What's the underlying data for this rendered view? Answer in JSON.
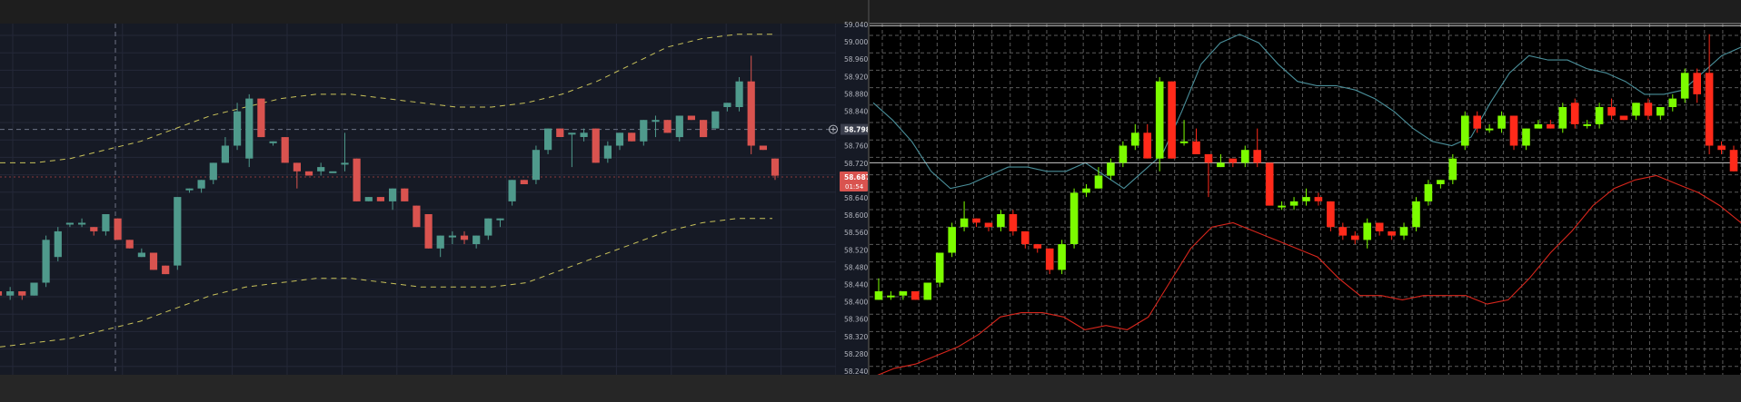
{
  "left_chart": {
    "type": "candlestick",
    "axis_ticks": [
      "59.040",
      "59.000",
      "58.960",
      "58.920",
      "58.880",
      "58.840",
      "58.798",
      "58.760",
      "58.720",
      "58.687",
      "58.640",
      "58.600",
      "58.560",
      "58.520",
      "58.480",
      "58.440",
      "58.400",
      "58.360",
      "58.320",
      "58.280",
      "58.240"
    ],
    "crosshair_price": "58.798",
    "last_price": "58.687",
    "countdown": "01:54",
    "colors": {
      "bg": "#161a25",
      "up": "#4f9a8c",
      "down": "#d9534f",
      "band": "#c9c25a",
      "grid": "#242838",
      "axis_text": "#b2b5be"
    }
  },
  "right_chart": {
    "type": "candlestick",
    "axis_ticks": [
      "59.040",
      "59.000",
      "58.960",
      "58.920",
      "58.880",
      "58.840",
      "58.798",
      "58.760",
      "58.720",
      "58.680",
      "58.640",
      "58.600",
      "58.560",
      "58.520",
      "58.480",
      "58.440",
      "58.400",
      "58.360",
      "58.320",
      "58.280",
      "58.240"
    ],
    "colors": {
      "bg": "#000000",
      "up": "#7cfc00",
      "down": "#ff2a1a",
      "grid": "#5a5a5a",
      "upper_line": "#4a8f9a",
      "lower_line": "#d8261c"
    }
  },
  "chart_data": [
    {
      "type": "candlestick",
      "ylim": [
        58.225,
        59.045
      ],
      "grid": true,
      "candles": [
        {
          "o": 58.42,
          "h": 58.44,
          "l": 58.4,
          "c": 58.41
        },
        {
          "o": 58.41,
          "h": 58.43,
          "l": 58.4,
          "c": 58.42
        },
        {
          "o": 58.42,
          "h": 58.42,
          "l": 58.4,
          "c": 58.41
        },
        {
          "o": 58.41,
          "h": 58.44,
          "l": 58.41,
          "c": 58.44
        },
        {
          "o": 58.44,
          "h": 58.55,
          "l": 58.43,
          "c": 58.54
        },
        {
          "o": 58.5,
          "h": 58.57,
          "l": 58.49,
          "c": 58.56
        },
        {
          "o": 58.58,
          "h": 58.58,
          "l": 58.57,
          "c": 58.58
        },
        {
          "o": 58.58,
          "h": 58.59,
          "l": 58.57,
          "c": 58.58
        },
        {
          "o": 58.57,
          "h": 58.57,
          "l": 58.55,
          "c": 58.56
        },
        {
          "o": 58.56,
          "h": 58.6,
          "l": 58.55,
          "c": 58.6
        },
        {
          "o": 58.59,
          "h": 58.59,
          "l": 58.54,
          "c": 58.54
        },
        {
          "o": 58.54,
          "h": 58.54,
          "l": 58.52,
          "c": 58.52
        },
        {
          "o": 58.5,
          "h": 58.52,
          "l": 58.5,
          "c": 58.51
        },
        {
          "o": 58.51,
          "h": 58.51,
          "l": 58.47,
          "c": 58.47
        },
        {
          "o": 58.48,
          "h": 58.48,
          "l": 58.46,
          "c": 58.46
        },
        {
          "o": 58.48,
          "h": 58.64,
          "l": 58.47,
          "c": 58.64
        },
        {
          "o": 58.66,
          "h": 58.66,
          "l": 58.65,
          "c": 58.66
        },
        {
          "o": 58.66,
          "h": 58.68,
          "l": 58.65,
          "c": 58.68
        },
        {
          "o": 58.68,
          "h": 58.72,
          "l": 58.67,
          "c": 58.72
        },
        {
          "o": 58.72,
          "h": 58.78,
          "l": 58.72,
          "c": 58.76
        },
        {
          "o": 58.76,
          "h": 58.86,
          "l": 58.75,
          "c": 58.84
        },
        {
          "o": 58.73,
          "h": 58.88,
          "l": 58.71,
          "c": 58.87
        },
        {
          "o": 58.87,
          "h": 58.87,
          "l": 58.78,
          "c": 58.78
        },
        {
          "o": 58.77,
          "h": 58.77,
          "l": 58.76,
          "c": 58.77
        },
        {
          "o": 58.78,
          "h": 58.78,
          "l": 58.72,
          "c": 58.72
        },
        {
          "o": 58.72,
          "h": 58.72,
          "l": 58.66,
          "c": 58.7
        },
        {
          "o": 58.7,
          "h": 58.7,
          "l": 58.69,
          "c": 58.69
        },
        {
          "o": 58.7,
          "h": 58.72,
          "l": 58.69,
          "c": 58.71
        },
        {
          "o": 58.7,
          "h": 58.7,
          "l": 58.7,
          "c": 58.7
        },
        {
          "o": 58.72,
          "h": 58.79,
          "l": 58.7,
          "c": 58.72
        },
        {
          "o": 58.73,
          "h": 58.73,
          "l": 58.63,
          "c": 58.63
        },
        {
          "o": 58.63,
          "h": 58.64,
          "l": 58.63,
          "c": 58.64
        },
        {
          "o": 58.64,
          "h": 58.64,
          "l": 58.63,
          "c": 58.63
        },
        {
          "o": 58.63,
          "h": 58.66,
          "l": 58.61,
          "c": 58.66
        },
        {
          "o": 58.66,
          "h": 58.66,
          "l": 58.63,
          "c": 58.63
        },
        {
          "o": 58.62,
          "h": 58.62,
          "l": 58.57,
          "c": 58.57
        },
        {
          "o": 58.6,
          "h": 58.6,
          "l": 58.52,
          "c": 58.52
        },
        {
          "o": 58.52,
          "h": 58.55,
          "l": 58.5,
          "c": 58.55
        },
        {
          "o": 58.55,
          "h": 58.56,
          "l": 58.53,
          "c": 58.55
        },
        {
          "o": 58.55,
          "h": 58.56,
          "l": 58.53,
          "c": 58.54
        },
        {
          "o": 58.53,
          "h": 58.55,
          "l": 58.52,
          "c": 58.55
        },
        {
          "o": 58.55,
          "h": 58.59,
          "l": 58.54,
          "c": 58.59
        },
        {
          "o": 58.59,
          "h": 58.59,
          "l": 58.57,
          "c": 58.59
        },
        {
          "o": 58.63,
          "h": 58.68,
          "l": 58.62,
          "c": 58.68
        },
        {
          "o": 58.68,
          "h": 58.68,
          "l": 58.67,
          "c": 58.67
        },
        {
          "o": 58.68,
          "h": 58.76,
          "l": 58.67,
          "c": 58.75
        },
        {
          "o": 58.75,
          "h": 58.8,
          "l": 58.74,
          "c": 58.8
        },
        {
          "o": 58.8,
          "h": 58.8,
          "l": 58.78,
          "c": 58.78
        },
        {
          "o": 58.79,
          "h": 58.79,
          "l": 58.71,
          "c": 58.79
        },
        {
          "o": 58.78,
          "h": 58.8,
          "l": 58.77,
          "c": 58.79
        },
        {
          "o": 58.8,
          "h": 58.8,
          "l": 58.72,
          "c": 58.72
        },
        {
          "o": 58.73,
          "h": 58.77,
          "l": 58.72,
          "c": 58.76
        },
        {
          "o": 58.76,
          "h": 58.79,
          "l": 58.75,
          "c": 58.79
        },
        {
          "o": 58.79,
          "h": 58.79,
          "l": 58.77,
          "c": 58.77
        },
        {
          "o": 58.77,
          "h": 58.82,
          "l": 58.76,
          "c": 58.82
        },
        {
          "o": 58.82,
          "h": 58.83,
          "l": 58.78,
          "c": 58.82
        },
        {
          "o": 58.82,
          "h": 58.82,
          "l": 58.79,
          "c": 58.79
        },
        {
          "o": 58.78,
          "h": 58.83,
          "l": 58.77,
          "c": 58.83
        },
        {
          "o": 58.83,
          "h": 58.83,
          "l": 58.82,
          "c": 58.82
        },
        {
          "o": 58.82,
          "h": 58.82,
          "l": 58.78,
          "c": 58.78
        },
        {
          "o": 58.8,
          "h": 58.84,
          "l": 58.8,
          "c": 58.84
        },
        {
          "o": 58.85,
          "h": 58.86,
          "l": 58.84,
          "c": 58.86
        },
        {
          "o": 58.85,
          "h": 58.92,
          "l": 58.84,
          "c": 58.91
        },
        {
          "o": 58.91,
          "h": 58.97,
          "l": 58.74,
          "c": 58.76
        },
        {
          "o": 58.76,
          "h": 58.76,
          "l": 58.75,
          "c": 58.75
        },
        {
          "o": 58.73,
          "h": 58.73,
          "l": 58.68,
          "c": 58.69
        }
      ],
      "series": [
        {
          "values": [
            58.72,
            58.72,
            58.73,
            58.75,
            58.77,
            58.8,
            58.83,
            58.85,
            58.87,
            58.88,
            58.88,
            58.87,
            58.86,
            58.85,
            58.85,
            58.86,
            58.88,
            58.91,
            58.95,
            58.99,
            59.01,
            59.02,
            59.02
          ]
        },
        {
          "values": [
            58.29,
            58.3,
            58.31,
            58.33,
            58.35,
            58.38,
            58.41,
            58.43,
            58.44,
            58.45,
            58.45,
            58.44,
            58.43,
            58.43,
            58.43,
            58.44,
            58.47,
            58.5,
            58.53,
            58.56,
            58.58,
            58.59,
            58.59
          ]
        }
      ],
      "crosshair_price": 58.798,
      "last_price": 58.687
    },
    {
      "type": "candlestick",
      "ylim": [
        58.225,
        59.045
      ],
      "grid": true,
      "candles": [
        {
          "o": 58.4,
          "h": 58.45,
          "l": 58.4,
          "c": 58.42
        },
        {
          "o": 58.41,
          "h": 58.42,
          "l": 58.4,
          "c": 58.41
        },
        {
          "o": 58.41,
          "h": 58.42,
          "l": 58.4,
          "c": 58.42
        },
        {
          "o": 58.42,
          "h": 58.42,
          "l": 58.4,
          "c": 58.4
        },
        {
          "o": 58.4,
          "h": 58.44,
          "l": 58.4,
          "c": 58.44
        },
        {
          "o": 58.44,
          "h": 58.51,
          "l": 58.43,
          "c": 58.51
        },
        {
          "o": 58.51,
          "h": 58.58,
          "l": 58.5,
          "c": 58.57
        },
        {
          "o": 58.57,
          "h": 58.63,
          "l": 58.56,
          "c": 58.59
        },
        {
          "o": 58.59,
          "h": 58.59,
          "l": 58.57,
          "c": 58.58
        },
        {
          "o": 58.58,
          "h": 58.58,
          "l": 58.56,
          "c": 58.57
        },
        {
          "o": 58.57,
          "h": 58.61,
          "l": 58.56,
          "c": 58.6
        },
        {
          "o": 58.6,
          "h": 58.61,
          "l": 58.55,
          "c": 58.56
        },
        {
          "o": 58.56,
          "h": 58.56,
          "l": 58.52,
          "c": 58.53
        },
        {
          "o": 58.53,
          "h": 58.53,
          "l": 58.51,
          "c": 58.52
        },
        {
          "o": 58.52,
          "h": 58.52,
          "l": 58.46,
          "c": 58.47
        },
        {
          "o": 58.47,
          "h": 58.54,
          "l": 58.46,
          "c": 58.53
        },
        {
          "o": 58.53,
          "h": 58.66,
          "l": 58.52,
          "c": 58.65
        },
        {
          "o": 58.65,
          "h": 58.67,
          "l": 58.64,
          "c": 58.66
        },
        {
          "o": 58.66,
          "h": 58.71,
          "l": 58.66,
          "c": 58.69
        },
        {
          "o": 58.69,
          "h": 58.73,
          "l": 58.68,
          "c": 58.72
        },
        {
          "o": 58.72,
          "h": 58.77,
          "l": 58.71,
          "c": 58.76
        },
        {
          "o": 58.76,
          "h": 58.81,
          "l": 58.75,
          "c": 58.79
        },
        {
          "o": 58.79,
          "h": 58.81,
          "l": 58.73,
          "c": 58.73
        },
        {
          "o": 58.73,
          "h": 58.92,
          "l": 58.7,
          "c": 58.91
        },
        {
          "o": 58.91,
          "h": 58.91,
          "l": 58.73,
          "c": 58.73
        },
        {
          "o": 58.77,
          "h": 58.82,
          "l": 58.76,
          "c": 58.77
        },
        {
          "o": 58.77,
          "h": 58.8,
          "l": 58.74,
          "c": 58.74
        },
        {
          "o": 58.74,
          "h": 58.74,
          "l": 58.64,
          "c": 58.72
        },
        {
          "o": 58.71,
          "h": 58.74,
          "l": 58.71,
          "c": 58.72
        },
        {
          "o": 58.73,
          "h": 58.73,
          "l": 58.71,
          "c": 58.72
        },
        {
          "o": 58.72,
          "h": 58.76,
          "l": 58.71,
          "c": 58.75
        },
        {
          "o": 58.75,
          "h": 58.8,
          "l": 58.71,
          "c": 58.72
        },
        {
          "o": 58.72,
          "h": 58.72,
          "l": 58.62,
          "c": 58.62
        },
        {
          "o": 58.62,
          "h": 58.63,
          "l": 58.61,
          "c": 58.62
        },
        {
          "o": 58.62,
          "h": 58.64,
          "l": 58.61,
          "c": 58.63
        },
        {
          "o": 58.63,
          "h": 58.66,
          "l": 58.62,
          "c": 58.64
        },
        {
          "o": 58.64,
          "h": 58.65,
          "l": 58.62,
          "c": 58.63
        },
        {
          "o": 58.63,
          "h": 58.63,
          "l": 58.56,
          "c": 58.57
        },
        {
          "o": 58.57,
          "h": 58.58,
          "l": 58.54,
          "c": 58.55
        },
        {
          "o": 58.55,
          "h": 58.56,
          "l": 58.53,
          "c": 58.54
        },
        {
          "o": 58.54,
          "h": 58.59,
          "l": 58.52,
          "c": 58.58
        },
        {
          "o": 58.58,
          "h": 58.58,
          "l": 58.55,
          "c": 58.56
        },
        {
          "o": 58.56,
          "h": 58.56,
          "l": 58.54,
          "c": 58.55
        },
        {
          "o": 58.55,
          "h": 58.58,
          "l": 58.54,
          "c": 58.57
        },
        {
          "o": 58.57,
          "h": 58.64,
          "l": 58.56,
          "c": 58.63
        },
        {
          "o": 58.63,
          "h": 58.68,
          "l": 58.62,
          "c": 58.67
        },
        {
          "o": 58.67,
          "h": 58.68,
          "l": 58.66,
          "c": 58.68
        },
        {
          "o": 58.68,
          "h": 58.74,
          "l": 58.67,
          "c": 58.73
        },
        {
          "o": 58.76,
          "h": 58.84,
          "l": 58.75,
          "c": 58.83
        },
        {
          "o": 58.83,
          "h": 58.84,
          "l": 58.79,
          "c": 58.8
        },
        {
          "o": 58.8,
          "h": 58.81,
          "l": 58.79,
          "c": 58.8
        },
        {
          "o": 58.8,
          "h": 58.84,
          "l": 58.79,
          "c": 58.83
        },
        {
          "o": 58.83,
          "h": 58.83,
          "l": 58.75,
          "c": 58.76
        },
        {
          "o": 58.76,
          "h": 58.8,
          "l": 58.75,
          "c": 58.8
        },
        {
          "o": 58.8,
          "h": 58.82,
          "l": 58.8,
          "c": 58.81
        },
        {
          "o": 58.81,
          "h": 58.82,
          "l": 58.8,
          "c": 58.8
        },
        {
          "o": 58.8,
          "h": 58.86,
          "l": 58.79,
          "c": 58.85
        },
        {
          "o": 58.86,
          "h": 58.87,
          "l": 58.8,
          "c": 58.81
        },
        {
          "o": 58.81,
          "h": 58.82,
          "l": 58.8,
          "c": 58.81
        },
        {
          "o": 58.81,
          "h": 58.86,
          "l": 58.8,
          "c": 58.85
        },
        {
          "o": 58.85,
          "h": 58.87,
          "l": 58.82,
          "c": 58.83
        },
        {
          "o": 58.83,
          "h": 58.83,
          "l": 58.82,
          "c": 58.82
        },
        {
          "o": 58.83,
          "h": 58.86,
          "l": 58.82,
          "c": 58.86
        },
        {
          "o": 58.86,
          "h": 58.87,
          "l": 58.82,
          "c": 58.83
        },
        {
          "o": 58.83,
          "h": 58.85,
          "l": 58.82,
          "c": 58.85
        },
        {
          "o": 58.85,
          "h": 58.88,
          "l": 58.84,
          "c": 58.87
        },
        {
          "o": 58.87,
          "h": 58.94,
          "l": 58.86,
          "c": 58.93
        },
        {
          "o": 58.93,
          "h": 58.94,
          "l": 58.86,
          "c": 58.88
        },
        {
          "o": 58.93,
          "h": 59.02,
          "l": 58.74,
          "c": 58.76
        },
        {
          "o": 58.76,
          "h": 58.77,
          "l": 58.74,
          "c": 58.75
        },
        {
          "o": 58.75,
          "h": 58.76,
          "l": 58.7,
          "c": 58.7
        }
      ],
      "series": [
        {
          "values": [
            58.86,
            58.82,
            58.77,
            58.7,
            58.66,
            58.67,
            58.69,
            58.71,
            58.71,
            58.7,
            58.7,
            58.72,
            58.69,
            58.66,
            58.7,
            58.74,
            58.84,
            58.95,
            59.0,
            59.02,
            59.0,
            58.95,
            58.91,
            58.9,
            58.9,
            58.89,
            58.87,
            58.84,
            58.8,
            58.77,
            58.76,
            58.78,
            58.86,
            58.93,
            58.97,
            58.96,
            58.96,
            58.94,
            58.93,
            58.91,
            58.88,
            58.88,
            58.89,
            58.93,
            58.97,
            58.99
          ]
        },
        {
          "values": [
            58.22,
            58.24,
            58.25,
            58.27,
            58.29,
            58.32,
            58.36,
            58.37,
            58.37,
            58.36,
            58.33,
            58.34,
            58.33,
            58.36,
            58.44,
            58.52,
            58.57,
            58.58,
            58.56,
            58.54,
            58.52,
            58.5,
            58.45,
            58.41,
            58.41,
            58.4,
            58.41,
            58.41,
            58.41,
            58.39,
            58.4,
            58.45,
            58.51,
            58.56,
            58.62,
            58.66,
            58.68,
            58.69,
            58.67,
            58.65,
            58.62,
            58.58
          ]
        }
      ],
      "reference_lines": [
        59.04,
        58.72
      ]
    }
  ]
}
